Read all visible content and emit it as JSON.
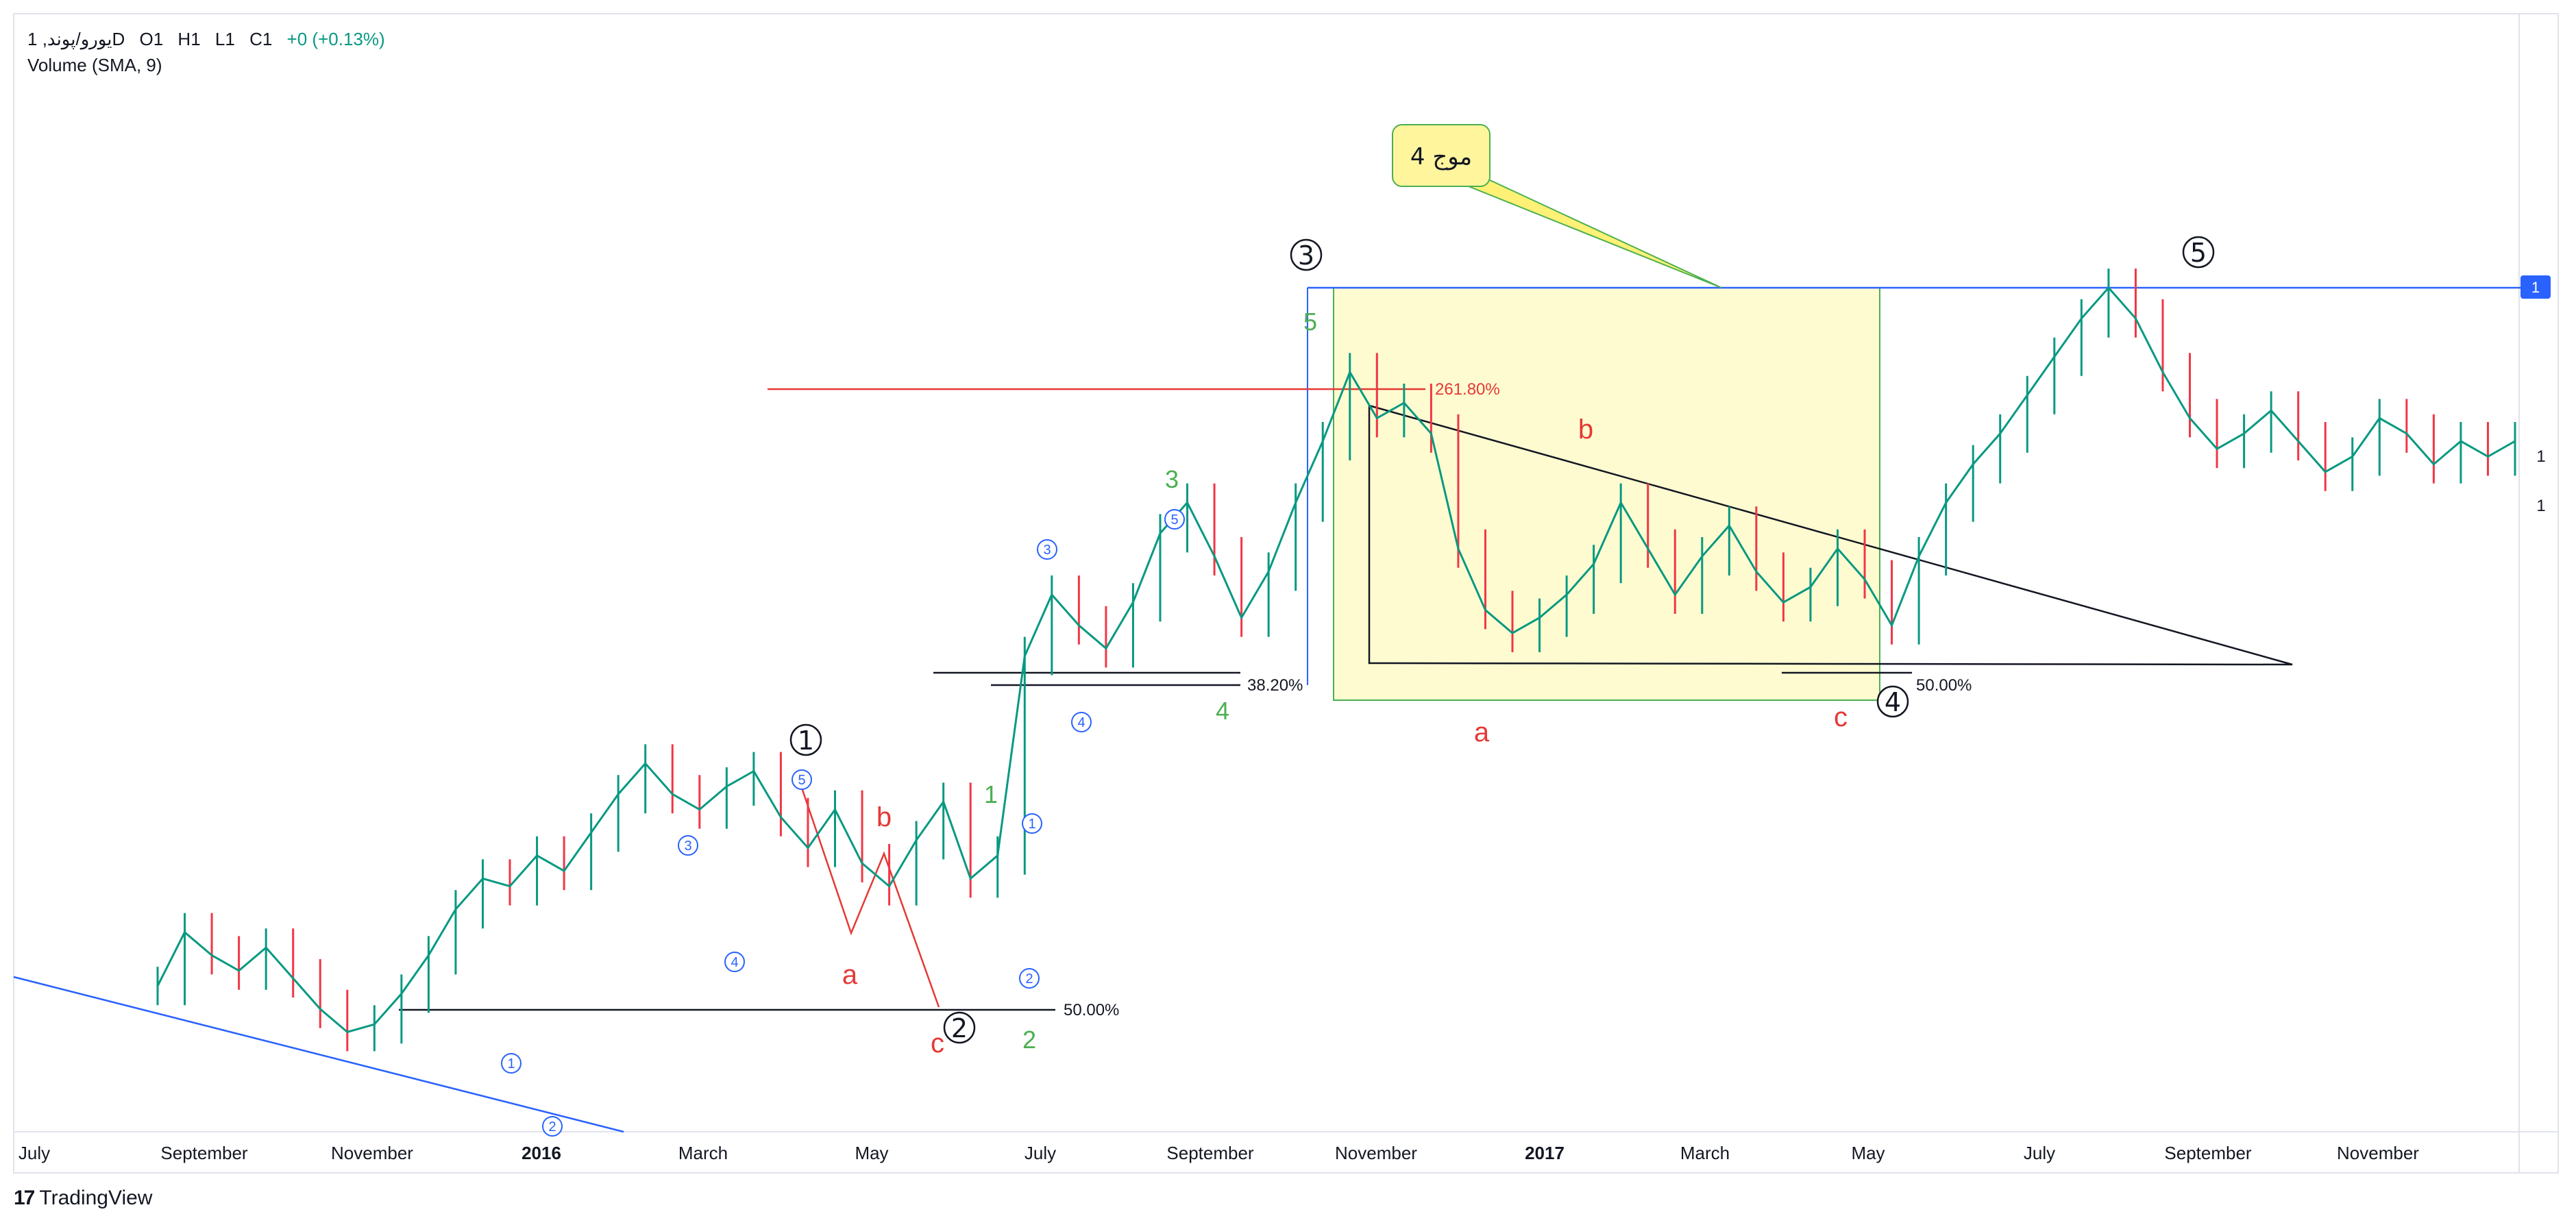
{
  "legend": {
    "symbol": "یورو/پوند, 1D",
    "open": "O1",
    "high": "H1",
    "low": "L1",
    "close": "C1",
    "change": "+0 (+0.13%)",
    "indicator": "Volume (SMA, 9)"
  },
  "brand": {
    "logo_mark": "17",
    "name": "TradingView"
  },
  "colors": {
    "up": "#089981",
    "down": "#f23645",
    "wave_green": "#4caf50",
    "wave_red": "#e53935",
    "blue": "#2962ff",
    "box_fill": "#fffbd1",
    "box_border": "#4caf50"
  },
  "chart_data": {
    "type": "line",
    "title": "",
    "xlabel": "",
    "ylabel": "",
    "x_ticks": [
      "July",
      "September",
      "November",
      "2016",
      "March",
      "May",
      "July",
      "September",
      "November",
      "2017",
      "March",
      "May",
      "July",
      "September",
      "November"
    ],
    "y_ticks": [
      "1",
      "1"
    ],
    "price_label": "1",
    "series": [
      {
        "values": [
          1.9,
          2.6,
          2.3,
          2.1,
          2.4,
          2.0,
          1.6,
          1.3,
          1.4,
          1.8,
          2.3,
          2.9,
          3.3,
          3.2,
          3.6,
          3.4,
          3.9,
          4.4,
          4.8,
          4.4,
          4.2,
          4.5,
          4.7,
          4.1,
          3.7,
          4.2,
          3.5,
          3.2,
          3.8,
          4.3,
          3.3,
          3.6,
          6.2,
          7.0,
          6.6,
          6.3,
          6.9,
          7.8,
          8.2,
          7.5,
          6.7,
          7.3,
          8.2,
          9.0,
          9.9,
          9.3,
          9.5,
          9.1,
          7.6,
          6.8,
          6.5,
          6.7,
          7.0,
          7.4,
          8.2,
          7.6,
          7.0,
          7.5,
          7.9,
          7.3,
          6.9,
          7.1,
          7.6,
          7.2,
          6.6,
          7.5,
          8.2,
          8.7,
          9.1,
          9.6,
          10.1,
          10.6,
          11.0,
          10.6,
          9.9,
          9.3,
          8.9,
          9.1,
          9.4,
          9.0,
          8.6,
          8.8,
          9.3,
          9.1,
          8.7,
          9.0,
          8.8,
          9.0
        ]
      }
    ],
    "annotations": {
      "primary_waves": [
        "1",
        "2",
        "3",
        "4",
        "5"
      ],
      "minor_green": [
        "1",
        "2",
        "3",
        "4",
        "5"
      ],
      "circled_blue": [
        "1",
        "2",
        "3",
        "4",
        "5",
        "3",
        "4",
        "5",
        "1",
        "2",
        "3",
        "4",
        "5"
      ],
      "correction_red": [
        "a",
        "b",
        "c",
        "a",
        "b",
        "c"
      ],
      "callout": "موج 4",
      "fib_labels": [
        "261.80%",
        "38.20%",
        "50.00%",
        "50.00%"
      ]
    }
  }
}
